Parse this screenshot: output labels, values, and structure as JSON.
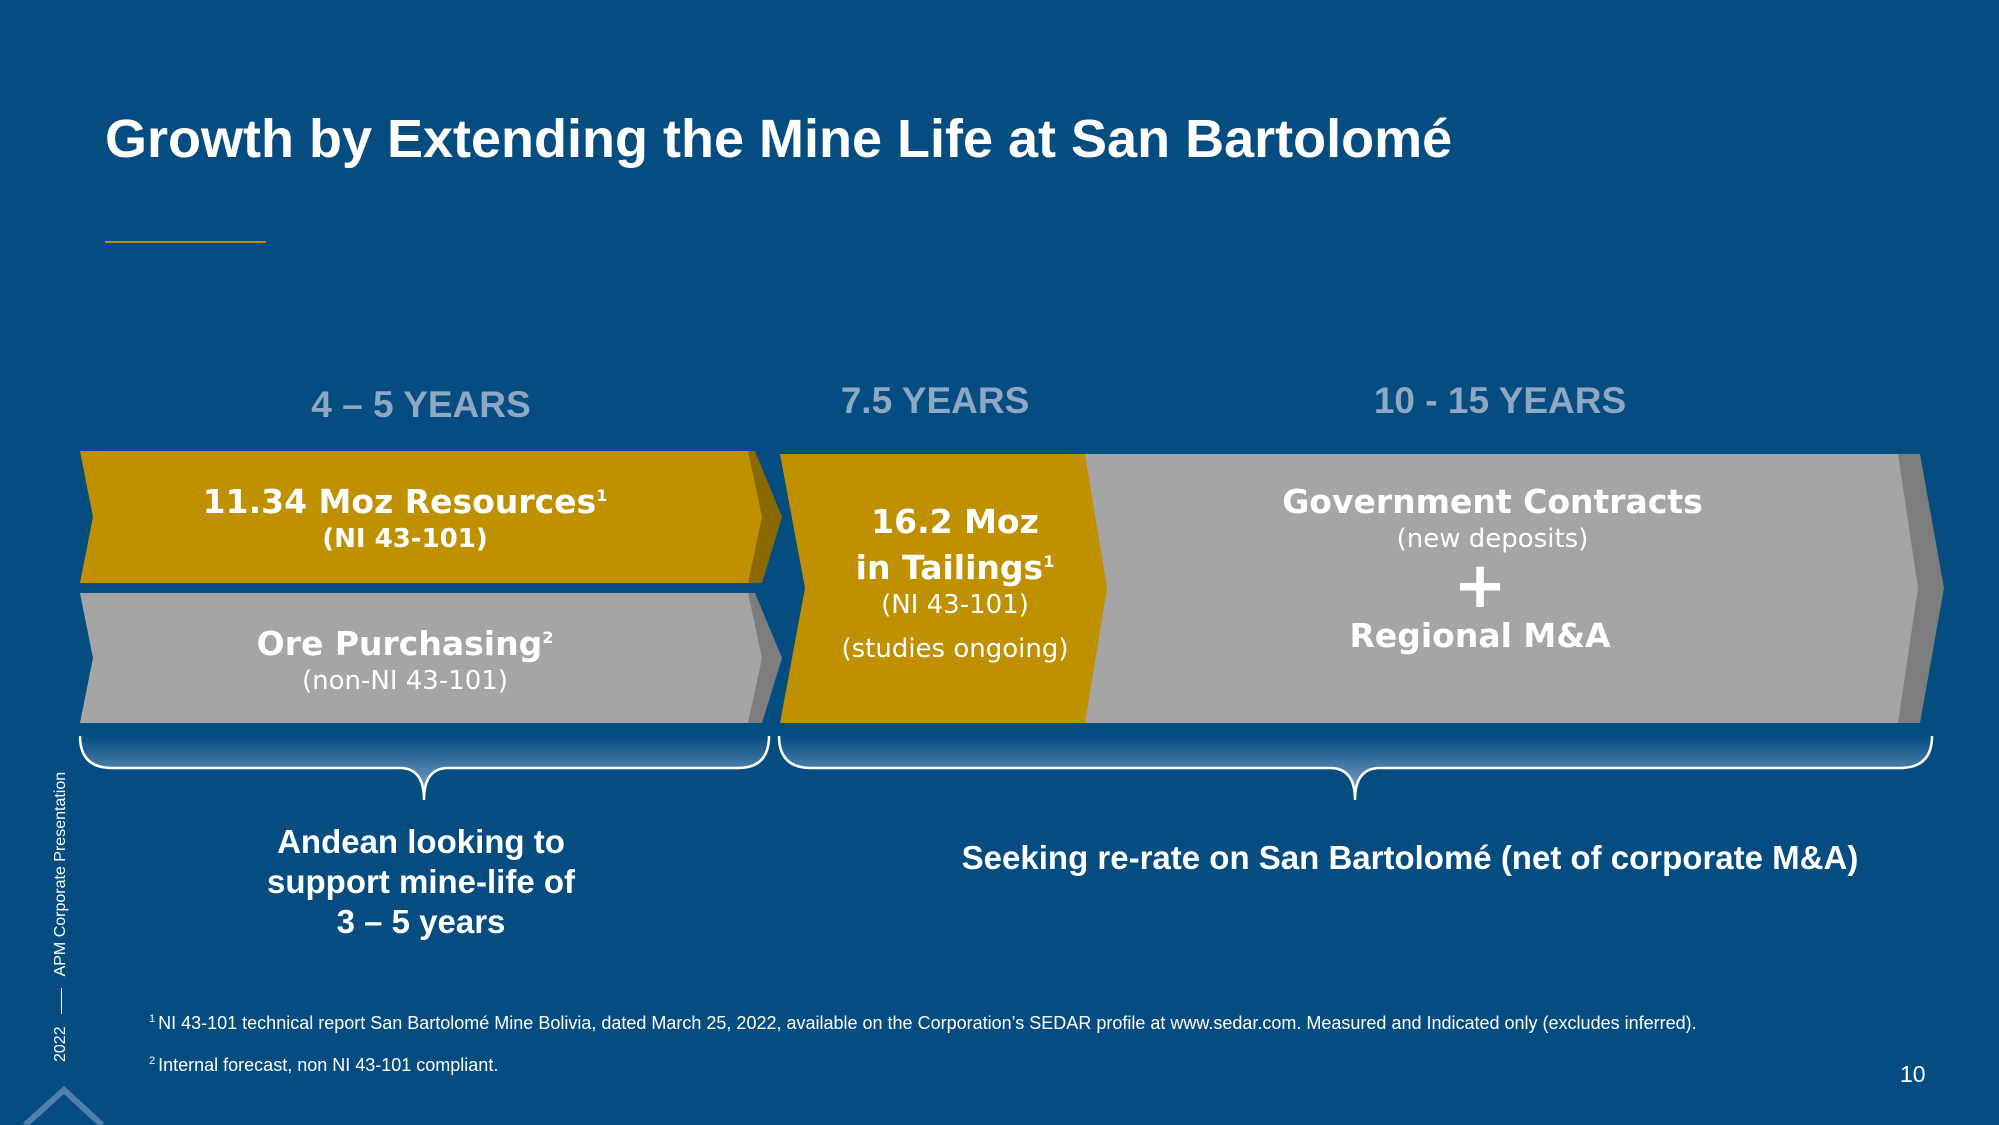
{
  "title": "Growth by Extending the Mine Life at San Bartolomé",
  "periods": [
    "4 – 5 YEARS",
    "7.5 YEARS",
    "10 - 15 YEARS"
  ],
  "boxes": {
    "resources": {
      "title": "11.34 Moz Resources",
      "sup": "1",
      "sub": "(NI 43-101)"
    },
    "ore": {
      "title": "Ore Purchasing",
      "sup": "2",
      "sub": "(non-NI 43-101)"
    },
    "tailings": {
      "line1": "16.2 Moz",
      "line2": "in Tailings",
      "sup": "1",
      "sub": "(NI 43-101)",
      "note": "(studies ongoing)"
    },
    "government": {
      "title": "Government Contracts",
      "sub": "(new deposits)",
      "plus": "+",
      "title2": "Regional M&A"
    }
  },
  "notes": {
    "left": [
      "Andean looking to",
      "support mine-life of",
      "3 – 5 years"
    ],
    "right": "Seeking re-rate on San Bartolomé (net of corporate M&A)"
  },
  "footnotes": [
    {
      "mark": "1",
      "text": "NI 43-101 technical report San Bartolomé Mine Bolivia, dated March 25, 2022, available on the Corporation’s SEDAR profile at www.sedar.com. Measured and Indicated only (excludes inferred)."
    },
    {
      "mark": "2",
      "text": "Internal forecast, non NI 43-101 compliant."
    }
  ],
  "side": {
    "label": "APM Corporate Presentation",
    "year": "2022"
  },
  "page_number": "10",
  "colors": {
    "background": "#054c81",
    "gold": "#bf9000",
    "gray": "#a5a5a5",
    "period": "#8ea7c2"
  }
}
